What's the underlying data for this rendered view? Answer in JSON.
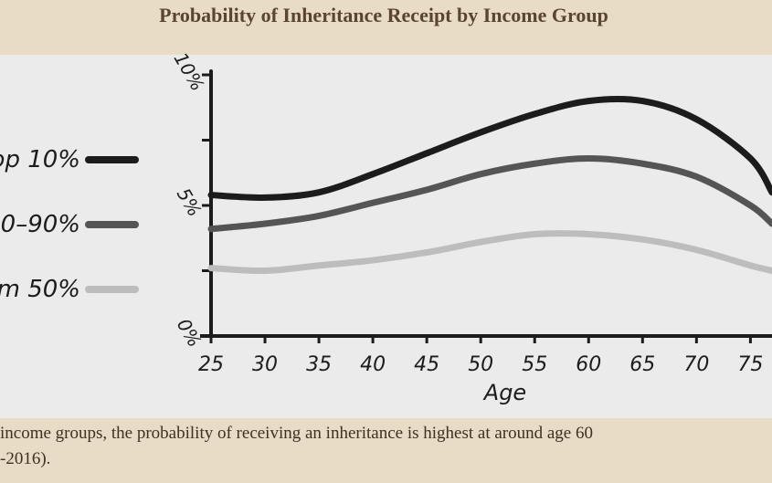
{
  "chart_data": {
    "type": "line",
    "title": "Probability of Inheritance Receipt by Income Group",
    "x_label": "Age",
    "x": [
      25,
      30,
      35,
      40,
      45,
      50,
      55,
      60,
      65,
      70,
      75,
      77
    ],
    "series": [
      {
        "name": "op 10%",
        "color": "#1c1c1c",
        "values": [
          5.4,
          5.3,
          5.5,
          6.2,
          7.0,
          7.8,
          8.5,
          9.0,
          9.0,
          8.3,
          6.8,
          5.5
        ]
      },
      {
        "name": "0–90%",
        "color": "#555555",
        "values": [
          4.1,
          4.3,
          4.6,
          5.1,
          5.6,
          6.2,
          6.6,
          6.8,
          6.6,
          6.1,
          5.0,
          4.3
        ]
      },
      {
        "name": "m 50%",
        "color": "#bdbdbd",
        "values": [
          2.6,
          2.5,
          2.7,
          2.9,
          3.2,
          3.6,
          3.9,
          3.9,
          3.7,
          3.3,
          2.7,
          2.5
        ]
      }
    ],
    "xlim": [
      25,
      77
    ],
    "xticks": [
      25,
      30,
      35,
      40,
      45,
      50,
      55,
      60,
      65,
      70,
      75
    ],
    "ylim": [
      0,
      10
    ],
    "yticks": [
      {
        "value": 0,
        "label": "0%"
      },
      {
        "value": 5,
        "label": "5%"
      },
      {
        "value": 10,
        "label": "10%"
      }
    ],
    "yminorticks": [
      2.5,
      7.5
    ],
    "caption": [
      "income groups, the probability of receiving an inheritance is highest at around age 60",
      "-2016)."
    ]
  }
}
